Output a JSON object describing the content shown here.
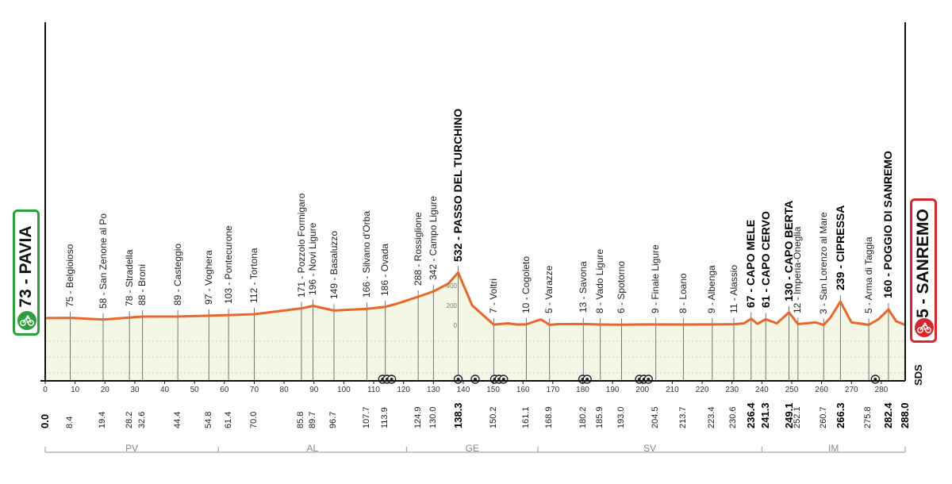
{
  "chart_data": {
    "type": "area",
    "title": "",
    "xlabel": "",
    "ylabel": "",
    "xlim": [
      0,
      288
    ],
    "ylim": [
      0,
      600
    ],
    "grid": true,
    "x_ticks": [
      "0",
      "10",
      "20",
      "30",
      "40",
      "50",
      "60",
      "70",
      "80",
      "90",
      "100",
      "110",
      "120",
      "130",
      "140",
      "150",
      "160",
      "170",
      "180",
      "190",
      "200",
      "210",
      "220",
      "230",
      "240",
      "250",
      "260",
      "270",
      "280"
    ],
    "y_ticks": [
      "0",
      "200",
      "400"
    ],
    "profile": {
      "x": [
        0,
        8.4,
        19.4,
        28.2,
        32.6,
        44.4,
        54.8,
        61.4,
        70,
        85.8,
        89.7,
        96.7,
        107.7,
        113.9,
        118,
        124.9,
        130,
        135,
        138.3,
        143,
        150.2,
        155,
        158,
        161.1,
        166,
        168.9,
        172,
        180.2,
        185.9,
        193,
        200,
        204.5,
        213.7,
        223.4,
        230.6,
        234,
        236.4,
        238.5,
        241.3,
        245,
        249.1,
        252.1,
        258,
        260.7,
        263,
        266.3,
        270,
        275.8,
        279,
        282.4,
        285,
        288
      ],
      "elevation": [
        73,
        75,
        58,
        78,
        88,
        89,
        97,
        103,
        112,
        171,
        196,
        149,
        166,
        186,
        220,
        288,
        342,
        420,
        532,
        200,
        7,
        20,
        8,
        10,
        60,
        5,
        12,
        13,
        8,
        6,
        9,
        9,
        8,
        9,
        11,
        20,
        67,
        15,
        61,
        20,
        130,
        12,
        30,
        3,
        80,
        239,
        30,
        5,
        60,
        160,
        40,
        5
      ]
    },
    "km_markers": [
      {
        "km": "0.0",
        "name": "73 - PAVIA",
        "bold": true,
        "endpoint": "start"
      },
      {
        "km": "8.4",
        "name": "75 - Belgioioso"
      },
      {
        "km": "19.4",
        "name": "58 - San Zenone al Po"
      },
      {
        "km": "28.2",
        "name": "78 - Stradella"
      },
      {
        "km": "32.6",
        "name": "88 - Broni"
      },
      {
        "km": "44.4",
        "name": "89 - Casteggio"
      },
      {
        "km": "54.8",
        "name": "97 - Voghera"
      },
      {
        "km": "61.4",
        "name": "103 - Pontecurone"
      },
      {
        "km": "70.0",
        "name": "112 - Tortona"
      },
      {
        "km": "85.8",
        "name": "171 - Pozzolo Formigaro"
      },
      {
        "km": "89.7",
        "name": "196 - Novi Ligure"
      },
      {
        "km": "96.7",
        "name": "149 - Basaluzzo"
      },
      {
        "km": "107.7",
        "name": "166 - Silvano d'Orba"
      },
      {
        "km": "113.9",
        "name": "186 - Ovada"
      },
      {
        "km": "124.9",
        "name": "288 - Rossiglione"
      },
      {
        "km": "130.0",
        "name": "342 - Campo Ligure"
      },
      {
        "km": "138.3",
        "name": "532 - PASSO DEL TURCHINO",
        "bold": true
      },
      {
        "km": "150.2",
        "name": "7 - Voltri"
      },
      {
        "km": "161.1",
        "name": "10 - Cogoleto"
      },
      {
        "km": "168.9",
        "name": "5 - Varazze"
      },
      {
        "km": "180.2",
        "name": "13 - Savona"
      },
      {
        "km": "185.9",
        "name": "8 - Vado Ligure"
      },
      {
        "km": "193.0",
        "name": "6 - Spotorno"
      },
      {
        "km": "204.5",
        "name": "9 - Finale Ligure"
      },
      {
        "km": "213.7",
        "name": "8 - Loano"
      },
      {
        "km": "223.4",
        "name": "9 - Albenga"
      },
      {
        "km": "230.6",
        "name": "11 - Alassio"
      },
      {
        "km": "236.4",
        "name": "67 - CAPO MELE",
        "bold": true
      },
      {
        "km": "241.3",
        "name": "61 - CAPO CERVO",
        "bold": true
      },
      {
        "km": "249.1",
        "name": "130 - CAPO BERTA",
        "bold": true
      },
      {
        "km": "252.1",
        "name": "12 - Imperia-Oneglia"
      },
      {
        "km": "260.7",
        "name": "3 - San Lorenzo al Mare"
      },
      {
        "km": "266.3",
        "name": "239 - CIPRESSA",
        "bold": true
      },
      {
        "km": "275.8",
        "name": "5 - Arma di Taggia"
      },
      {
        "km": "282.4",
        "name": "160 - POGGIO DI SANREMO",
        "bold": true
      },
      {
        "km": "288.0",
        "name": "5 - SANREMO",
        "bold": true,
        "endpoint": "finish"
      }
    ],
    "icon_markers_km": [
      113,
      114.5,
      116,
      138.3,
      144,
      150.5,
      152,
      153.5,
      180,
      181.5,
      199,
      200.5,
      202,
      278
    ],
    "provinces": [
      {
        "label": "PV",
        "from_km": 0,
        "to_km": 58
      },
      {
        "label": "AL",
        "from_km": 58,
        "to_km": 121
      },
      {
        "label": "GE",
        "from_km": 121,
        "to_km": 165
      },
      {
        "label": "SV",
        "from_km": 165,
        "to_km": 240
      },
      {
        "label": "IM",
        "from_km": 240,
        "to_km": 288
      }
    ]
  },
  "start_badge": {
    "text": "73 - PAVIA",
    "color": "#2e9e3e",
    "icon": "bike-icon"
  },
  "finish_badge": {
    "text": "5 - SANREMO",
    "color": "#d7262c",
    "icon": "bike-icon"
  },
  "sponsor_text": "SDS",
  "colors": {
    "profile_line": "#e8672b",
    "area_fill": "#f5f7e6",
    "grid": "#c8c8c8",
    "axis": "#111111",
    "province_line": "#a8a8a8",
    "province_text": "#8a8a8a"
  }
}
